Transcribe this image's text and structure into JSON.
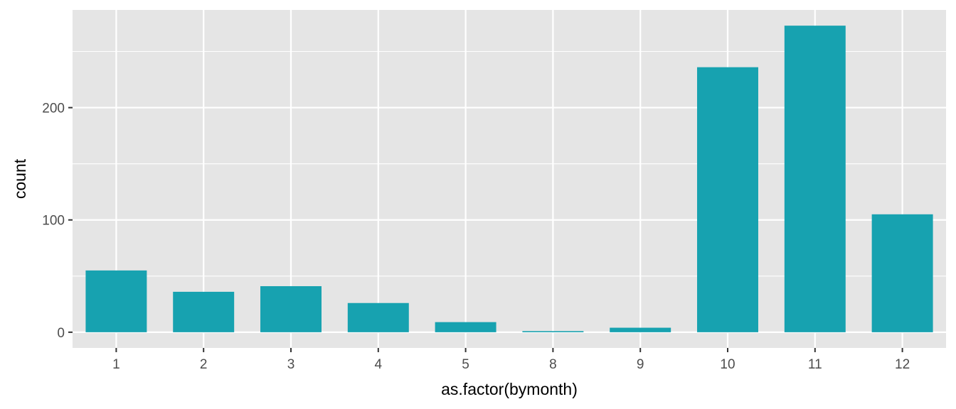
{
  "chart_data": {
    "type": "bar",
    "title": "",
    "xlabel": "as.factor(bymonth)",
    "ylabel": "count",
    "categories": [
      "1",
      "2",
      "3",
      "4",
      "5",
      "8",
      "9",
      "10",
      "11",
      "12"
    ],
    "values": [
      55,
      36,
      41,
      26,
      9,
      1,
      4,
      236,
      273,
      105
    ],
    "ylim": [
      -14,
      287
    ],
    "yticks": [
      0,
      100,
      200
    ],
    "ytick_labels": [
      "0",
      "100",
      "200"
    ],
    "grid": true,
    "legend": "none",
    "colors": {
      "bar": "#17a2b0",
      "panel": "#e5e5e5",
      "grid": "#ffffff",
      "tick_text": "#4d4d4d",
      "axis_title": "#000000"
    }
  }
}
